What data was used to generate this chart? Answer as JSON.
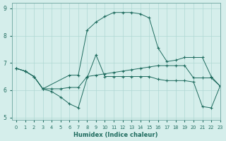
{
  "xlabel": "Humidex (Indice chaleur)",
  "ylabel": "",
  "bg_color": "#d5eeeb",
  "grid_color": "#afd8d4",
  "line_color": "#1e6b5e",
  "xlim": [
    -0.5,
    23
  ],
  "ylim": [
    4.9,
    9.2
  ],
  "yticks": [
    5,
    6,
    7,
    8,
    9
  ],
  "xticks": [
    0,
    1,
    2,
    3,
    4,
    5,
    6,
    7,
    8,
    9,
    10,
    11,
    12,
    13,
    14,
    15,
    16,
    17,
    18,
    19,
    20,
    21,
    22,
    23
  ],
  "lines": [
    {
      "x": [
        0,
        1,
        2,
        3,
        6,
        7,
        8,
        9,
        10,
        11,
        12,
        13,
        14,
        15,
        16,
        17,
        18,
        19,
        20,
        21,
        22,
        23
      ],
      "y": [
        6.8,
        6.7,
        6.5,
        6.05,
        6.55,
        6.55,
        8.2,
        8.5,
        8.7,
        8.85,
        8.85,
        8.85,
        8.8,
        8.65,
        7.55,
        7.05,
        7.1,
        7.2,
        7.2,
        7.2,
        6.5,
        6.15
      ]
    },
    {
      "x": [
        0,
        1,
        2,
        3,
        4,
        5,
        6,
        7,
        8,
        9,
        10,
        11,
        12,
        13,
        14,
        15,
        16,
        17,
        18,
        19,
        20,
        21,
        22,
        23
      ],
      "y": [
        6.8,
        6.7,
        6.5,
        6.05,
        6.05,
        6.05,
        6.1,
        6.1,
        6.5,
        6.55,
        6.6,
        6.65,
        6.7,
        6.75,
        6.8,
        6.85,
        6.9,
        6.9,
        6.9,
        6.9,
        6.45,
        6.45,
        6.45,
        6.15
      ]
    },
    {
      "x": [
        0,
        1,
        2,
        3,
        4,
        5,
        6,
        7,
        8,
        9,
        10,
        11,
        12,
        13,
        14,
        15,
        16,
        17,
        18,
        19,
        20,
        21,
        22,
        23
      ],
      "y": [
        6.8,
        6.7,
        6.5,
        6.05,
        5.95,
        5.75,
        5.5,
        5.35,
        6.45,
        7.3,
        6.5,
        6.5,
        6.5,
        6.5,
        6.5,
        6.5,
        6.4,
        6.35,
        6.35,
        6.35,
        6.3,
        5.4,
        5.35,
        6.15
      ]
    }
  ]
}
